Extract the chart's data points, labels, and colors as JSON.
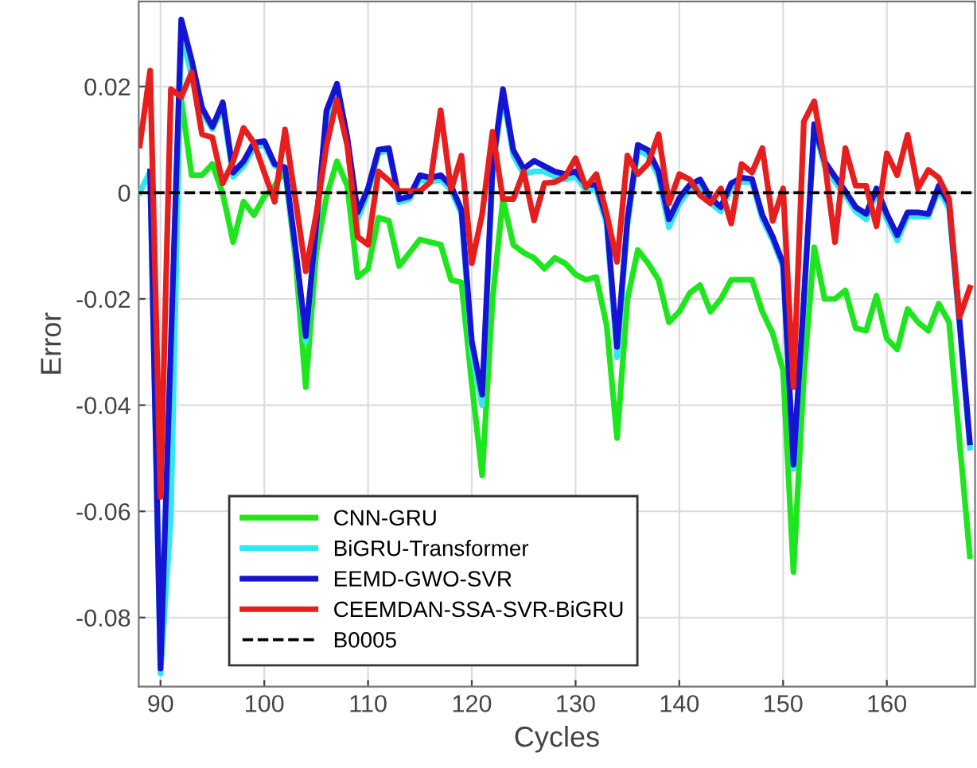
{
  "chart_data": {
    "type": "line",
    "xlabel": "Cycles",
    "ylabel": "Error",
    "x": [
      88,
      89,
      90,
      91,
      92,
      93,
      94,
      95,
      96,
      97,
      98,
      99,
      100,
      101,
      102,
      103,
      104,
      105,
      106,
      107,
      108,
      109,
      110,
      111,
      112,
      113,
      114,
      115,
      116,
      117,
      118,
      119,
      120,
      121,
      122,
      123,
      124,
      125,
      126,
      127,
      128,
      129,
      130,
      131,
      132,
      133,
      134,
      135,
      136,
      137,
      138,
      139,
      140,
      141,
      142,
      143,
      144,
      145,
      146,
      147,
      148,
      149,
      150,
      151,
      152,
      153,
      154,
      155,
      156,
      157,
      158,
      159,
      160,
      161,
      162,
      163,
      164,
      165,
      166,
      167,
      168
    ],
    "xlim": [
      87.9,
      168.5
    ],
    "xticks": [
      90,
      100,
      110,
      120,
      130,
      140,
      150,
      160
    ],
    "ylim": [
      -0.093,
      0.036
    ],
    "yticks": [
      -0.08,
      -0.06,
      -0.04,
      -0.02,
      0,
      0.02
    ],
    "grid": true,
    "legend": "bottom left",
    "line_style": "solid",
    "marker": "none",
    "series": [
      {
        "name": "CNN-GRU",
        "color": "#1ee61e",
        "values": [
          null,
          null,
          null,
          null,
          0.0175,
          0.0033,
          0.0033,
          0.0054,
          -0.0002,
          -0.0093,
          -0.0017,
          -0.0042,
          -0.0007,
          0.0013,
          0.0043,
          -0.0123,
          -0.0366,
          -0.0113,
          -0.0007,
          0.0059,
          0.0013,
          -0.0159,
          -0.0143,
          -0.0047,
          -0.0053,
          -0.0138,
          -0.0113,
          -0.0088,
          -0.0093,
          -0.0098,
          -0.0164,
          -0.0169,
          -0.036,
          -0.0532,
          -0.02,
          -0.0012,
          -0.0098,
          -0.0113,
          -0.0123,
          -0.0143,
          -0.0123,
          -0.0133,
          -0.0154,
          -0.0164,
          -0.0159,
          -0.025,
          -0.0462,
          -0.02,
          -0.0108,
          -0.0133,
          -0.0164,
          -0.0244,
          -0.0224,
          -0.0189,
          -0.0174,
          -0.0224,
          -0.02,
          -0.0164,
          -0.0164,
          -0.0164,
          -0.0224,
          -0.0265,
          -0.0335,
          -0.0714,
          -0.0345,
          -0.0103,
          -0.02,
          -0.02,
          -0.0184,
          -0.0255,
          -0.026,
          -0.0194,
          -0.0275,
          -0.0295,
          -0.0219,
          -0.0244,
          -0.026,
          -0.0209,
          -0.0244,
          -0.0467,
          -0.0684
        ]
      },
      {
        "name": "BiGRU-Transformer",
        "color": "#33e6f0",
        "values": [
          0,
          0.004,
          -0.0905,
          -0.061,
          0.03,
          0.022,
          0.015,
          0.012,
          0.016,
          0.003,
          0.005,
          0.0085,
          0.009,
          0.005,
          0.0045,
          -0.011,
          -0.028,
          -0.007,
          0.014,
          0.019,
          0.0095,
          -0.005,
          0,
          0.0075,
          0.008,
          -0.0018,
          -0.0012,
          0.0025,
          0.002,
          0.0025,
          0.0005,
          -0.004,
          -0.03,
          -0.04,
          0.004,
          0.0185,
          0.007,
          0.0035,
          0.004,
          0.004,
          0.003,
          0.0025,
          0.003,
          0.0005,
          0.0005,
          -0.006,
          -0.031,
          -0.006,
          0.008,
          0.007,
          0.003,
          -0.0065,
          -0.002,
          0.0005,
          0.0015,
          -0.002,
          -0.0035,
          0.001,
          0.002,
          0.002,
          -0.005,
          -0.009,
          -0.014,
          -0.052,
          -0.021,
          0.0125,
          0.005,
          0.002,
          -0.0005,
          -0.0035,
          -0.005,
          0,
          -0.005,
          -0.009,
          -0.0045,
          -0.0045,
          -0.0045,
          0.0005,
          -0.003,
          -0.025,
          -0.048
        ]
      },
      {
        "name": "EEMD-GWO-SVR",
        "color": "#1414d2",
        "values": [
          null,
          0.004,
          -0.0896,
          -0.0285,
          0.0326,
          0.025,
          0.016,
          0.0124,
          0.017,
          0.0038,
          0.0059,
          0.0094,
          0.0097,
          0.0054,
          0.0048,
          -0.0103,
          -0.027,
          -0.0063,
          0.0155,
          0.0205,
          0.0104,
          -0.0037,
          0.0008,
          0.0081,
          0.0084,
          -0.0012,
          -0.0007,
          0.0033,
          0.0028,
          0.0033,
          0.0013,
          -0.0032,
          -0.028,
          -0.038,
          0.005,
          0.0195,
          0.008,
          0.0045,
          0.006,
          0.005,
          0.004,
          0.0035,
          0.004,
          0.0015,
          0.0015,
          -0.005,
          -0.029,
          -0.005,
          0.009,
          0.008,
          0.004,
          -0.005,
          -0.001,
          0.0015,
          0.0025,
          -0.001,
          -0.0027,
          0.0018,
          0.0028,
          0.0026,
          -0.0042,
          -0.0083,
          -0.0133,
          -0.0512,
          -0.02,
          0.0129,
          0.0059,
          0.003,
          0.0003,
          -0.0027,
          -0.004,
          0.0008,
          -0.004,
          -0.008,
          -0.0037,
          -0.0037,
          -0.004,
          0.0013,
          -0.002,
          -0.024,
          -0.047
        ]
      },
      {
        "name": "CEEMDAN-SSA-SVR-BiGRU",
        "color": "#e61e1e",
        "values": [
          0.0089,
          0.023,
          -0.0573,
          0.0195,
          0.018,
          0.0227,
          0.011,
          0.0104,
          0.0018,
          0.0059,
          0.0122,
          0.0094,
          0.0038,
          -0.0017,
          0.0119,
          -0.0012,
          -0.0148,
          -0.0042,
          0.0089,
          0.0175,
          0.0089,
          -0.0083,
          -0.0098,
          0.004,
          0.0023,
          0.0003,
          0.0003,
          0.0003,
          0.002,
          0.0155,
          0.0005,
          0.007,
          -0.0133,
          -0.004,
          0.0115,
          -0.0012,
          -0.0012,
          0.004,
          -0.0052,
          0.0018,
          0.002,
          0.003,
          0.0065,
          0.001,
          0.0035,
          -0.004,
          -0.013,
          0.007,
          0.0035,
          0.0055,
          0.011,
          -0.002,
          0.0035,
          0.0025,
          -0.0005,
          -0.002,
          0.0008,
          -0.0058,
          0.0054,
          0.0038,
          0.0084,
          -0.0053,
          0.0008,
          -0.0366,
          0.0134,
          0.0172,
          0.0059,
          -0.0093,
          0.0084,
          0.0013,
          0.0013,
          -0.0063,
          0.0074,
          0.0033,
          0.0109,
          0.0008,
          0.0043,
          0.0028,
          -0.0012,
          -0.0234,
          -0.0179
        ]
      }
    ],
    "ref_lines": [
      {
        "axis": "y",
        "value": 0,
        "label": "B0005",
        "color": "#000000",
        "line_style": "dashed"
      }
    ]
  }
}
